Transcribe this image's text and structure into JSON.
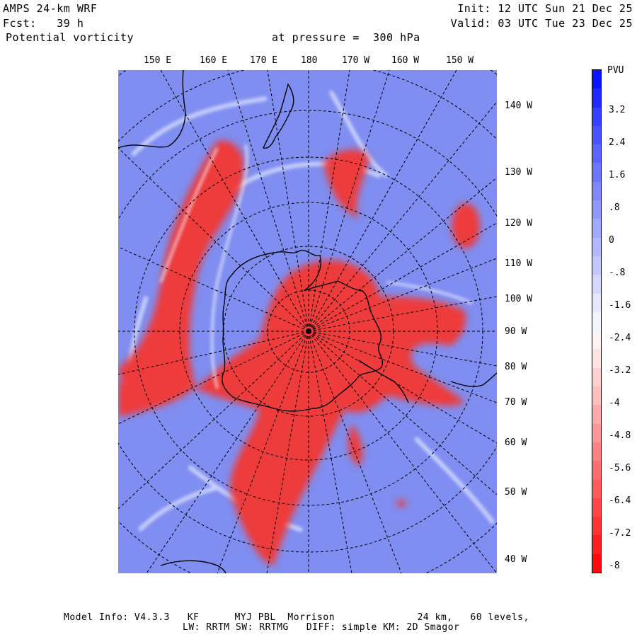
{
  "header": {
    "model": "AMPS 24-km WRF",
    "init": "Init: 12 UTC Sun 21 Dec 25",
    "forecast": "Fcst:   39 h",
    "valid": "Valid: 03 UTC Tue 23 Dec 25",
    "field": "Potential vorticity",
    "level": "at pressure =  300 hPa"
  },
  "longitude_ticks_top": [
    "150 E",
    "160 E",
    "170 E",
    "180",
    "170 W",
    "160 W",
    "150 W"
  ],
  "longitude_ticks_right": [
    "140 W",
    "130 W",
    "120 W",
    "110 W",
    "100 W",
    "90 W",
    "80 W",
    "70 W",
    "60 W",
    "50 W",
    "40 W"
  ],
  "colorbar": {
    "unit": "PVU",
    "labels": [
      "3.2",
      "2.4",
      "1.6",
      ".8",
      "0",
      "-.8",
      "-1.6",
      "-2.4",
      "-3.2",
      "-4",
      "-4.8",
      "-5.6",
      "-6.4",
      "-7.2",
      "-8"
    ],
    "colors": [
      "#0a14ff",
      "#1e2aff",
      "#3340ff",
      "#4753ff",
      "#5a65ff",
      "#6c77ff",
      "#7e88ff",
      "#8f98ff",
      "#a0a8ff",
      "#b1b8ff",
      "#c2c8ff",
      "#d3d8ff",
      "#e4e8ff",
      "#f2f4ff",
      "#fff2f2",
      "#ffe2e2",
      "#ffd0d0",
      "#ffbdbd",
      "#ffaaaa",
      "#ff9696",
      "#ff8282",
      "#ff6e6e",
      "#ff5a5a",
      "#ff4646",
      "#ff3232",
      "#ff1e1e",
      "#ff0a0a"
    ]
  },
  "colors": {
    "background_blue": "#7f8ef0",
    "pv_red": "#ee3a3a",
    "light": "#e8ecff",
    "coast": "#000000"
  },
  "footer": {
    "line1": "Model Info: V4.3.3   KF      MYJ PBL  Morrison              24 km,   60 levels,",
    "line2": "LW: RRTM SW: RRTMG   DIFF: simple KM: 2D Smagor"
  }
}
